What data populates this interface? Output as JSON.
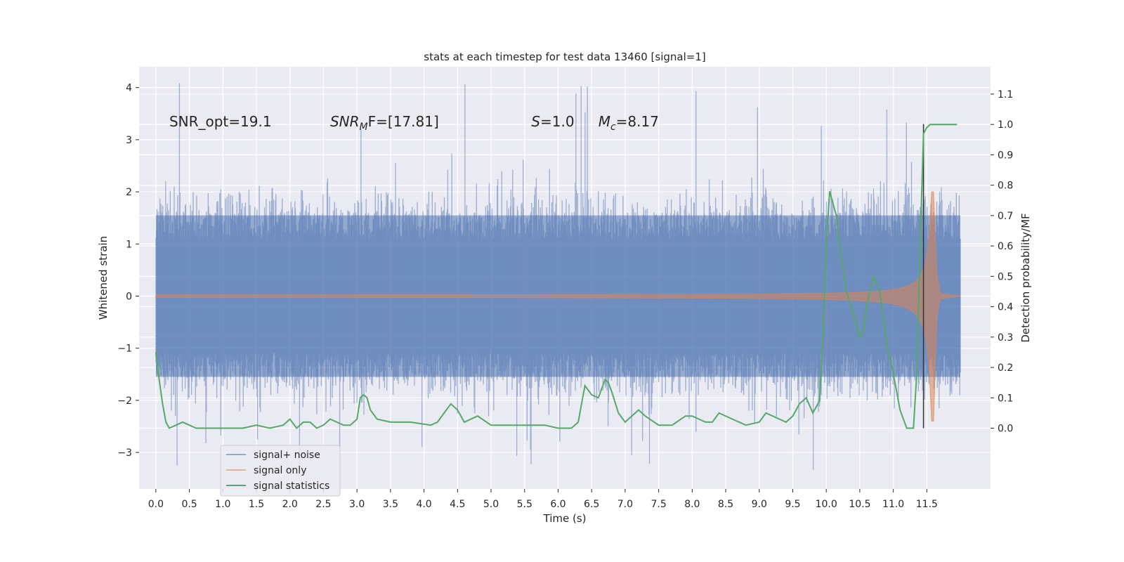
{
  "chart_data": {
    "type": "line",
    "title": "stats at each timestep for test data 13460 [signal=1]",
    "xlabel": "Time (s)",
    "ylabel": "Whitened strain",
    "ylabel_right": "Detection probability/MF",
    "xlim": [
      -0.25,
      12.45
    ],
    "ylim": [
      -3.7,
      4.4
    ],
    "ylim_right": [
      -0.2,
      1.19
    ],
    "xticks": [
      "0.0",
      "0.5",
      "1.0",
      "1.5",
      "2.0",
      "2.5",
      "3.0",
      "3.5",
      "4.0",
      "4.5",
      "5.0",
      "5.5",
      "6.0",
      "6.5",
      "7.0",
      "7.5",
      "8.0",
      "8.5",
      "9.0",
      "9.5",
      "10.0",
      "10.5",
      "11.0",
      "11.5"
    ],
    "yticks": [
      "−3",
      "−2",
      "−1",
      "0",
      "1",
      "2",
      "3",
      "4"
    ],
    "yticks_right": [
      "0.0",
      "0.1",
      "0.2",
      "0.3",
      "0.4",
      "0.5",
      "0.6",
      "0.7",
      "0.8",
      "0.9",
      "1.0",
      "1.1"
    ],
    "grid": true,
    "legend_position": "bottom-left",
    "annotations": [
      {
        "text": "SNR_opt=19.1",
        "x": 0.2
      },
      {
        "text": "SNR",
        "sub": "M",
        "rest": "F=[17.81]",
        "x": 2.6
      },
      {
        "text": "S",
        "rest": "=1.0",
        "x": 5.6
      },
      {
        "text": "M",
        "sub": "c",
        "rest": "=8.17",
        "x": 6.6
      }
    ],
    "vline_x": 11.45,
    "series": [
      {
        "name": "signal+ noise",
        "color": "#4c72b0",
        "envelope": {
          "t_start": 0.0,
          "t_end": 12.0,
          "core": 1.55,
          "spike_max": 4.1,
          "spike_min": -3.35
        }
      },
      {
        "name": "signal only",
        "color": "#dd8452",
        "chirp": {
          "t_start": 0.0,
          "t_merge": 11.6,
          "t_end": 12.0,
          "amp_start": 0.02,
          "amp_peak_pos": 2.0,
          "amp_peak_neg": -2.6
        }
      },
      {
        "name": "signal statistics",
        "color": "#55a868",
        "x": [
          0.0,
          0.05,
          0.1,
          0.15,
          0.2,
          0.3,
          0.4,
          0.5,
          0.6,
          0.8,
          1.0,
          1.3,
          1.5,
          1.7,
          1.9,
          2.0,
          2.1,
          2.2,
          2.3,
          2.4,
          2.5,
          2.6,
          2.7,
          2.8,
          2.9,
          3.0,
          3.05,
          3.1,
          3.15,
          3.2,
          3.3,
          3.5,
          3.8,
          4.1,
          4.2,
          4.3,
          4.4,
          4.5,
          4.6,
          4.8,
          5.0,
          5.5,
          5.8,
          6.0,
          6.2,
          6.3,
          6.4,
          6.5,
          6.6,
          6.7,
          6.75,
          6.8,
          6.9,
          7.0,
          7.1,
          7.2,
          7.3,
          7.5,
          7.7,
          7.9,
          8.0,
          8.1,
          8.2,
          8.3,
          8.4,
          8.6,
          8.8,
          9.0,
          9.1,
          9.2,
          9.3,
          9.4,
          9.5,
          9.6,
          9.7,
          9.8,
          9.9,
          9.95,
          10.0,
          10.05,
          10.1,
          10.15,
          10.2,
          10.3,
          10.4,
          10.5,
          10.55,
          10.6,
          10.7,
          10.8,
          10.9,
          11.0,
          11.1,
          11.2,
          11.3,
          11.35,
          11.4,
          11.45,
          11.5,
          11.55,
          11.6,
          11.7,
          11.8,
          11.95
        ],
        "y": [
          0.25,
          0.16,
          0.08,
          0.02,
          0.0,
          0.01,
          0.02,
          0.01,
          0.0,
          0.0,
          0.0,
          0.0,
          0.01,
          0.0,
          0.01,
          0.03,
          0.0,
          0.02,
          0.02,
          0.0,
          0.01,
          0.03,
          0.02,
          0.01,
          0.01,
          0.03,
          0.1,
          0.11,
          0.1,
          0.06,
          0.03,
          0.02,
          0.02,
          0.01,
          0.02,
          0.05,
          0.08,
          0.06,
          0.02,
          0.04,
          0.01,
          0.01,
          0.01,
          0.0,
          0.0,
          0.02,
          0.14,
          0.11,
          0.1,
          0.16,
          0.15,
          0.12,
          0.05,
          0.02,
          0.04,
          0.06,
          0.04,
          0.01,
          0.01,
          0.04,
          0.04,
          0.03,
          0.02,
          0.02,
          0.05,
          0.03,
          0.01,
          0.02,
          0.05,
          0.04,
          0.03,
          0.02,
          0.04,
          0.08,
          0.1,
          0.05,
          0.09,
          0.3,
          0.6,
          0.78,
          0.74,
          0.7,
          0.6,
          0.45,
          0.38,
          0.3,
          0.32,
          0.4,
          0.5,
          0.45,
          0.28,
          0.18,
          0.06,
          0.0,
          0.0,
          0.18,
          0.6,
          0.97,
          0.99,
          1.0,
          1.0,
          1.0,
          1.0,
          1.0
        ]
      }
    ]
  }
}
